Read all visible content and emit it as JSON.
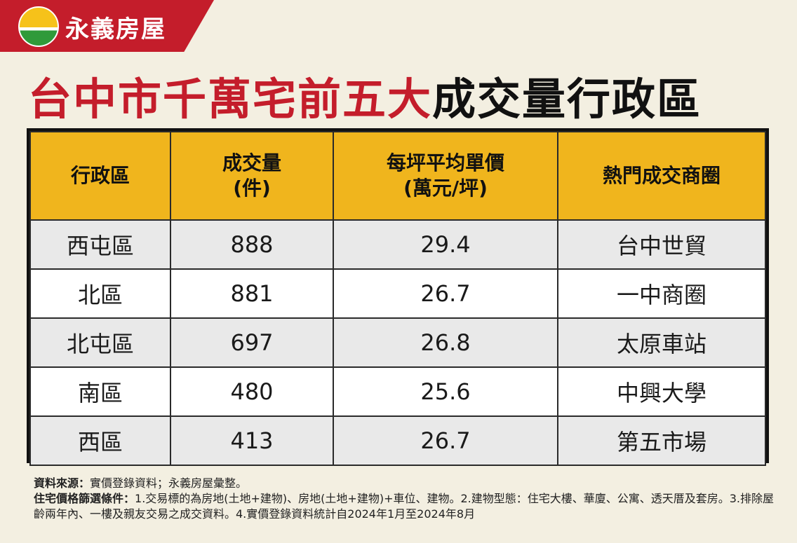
{
  "brand": {
    "name": "永義房屋"
  },
  "headline": {
    "red_part": "台中市千萬宅前五大",
    "black_part": "成交量行政區"
  },
  "table": {
    "headers": [
      {
        "line1": "行政區",
        "line2": ""
      },
      {
        "line1": "成交量",
        "line2": "(件)"
      },
      {
        "line1": "每坪平均單價",
        "line2": "(萬元/坪)"
      },
      {
        "line1": "熱門成交商圈",
        "line2": ""
      }
    ],
    "rows": [
      {
        "district": "西屯區",
        "volume": "888",
        "price": "29.4",
        "area": "台中世貿"
      },
      {
        "district": "北區",
        "volume": "881",
        "price": "26.7",
        "area": "一中商圈"
      },
      {
        "district": "北屯區",
        "volume": "697",
        "price": "26.8",
        "area": "太原車站"
      },
      {
        "district": "南區",
        "volume": "480",
        "price": "25.6",
        "area": "中興大學"
      },
      {
        "district": "西區",
        "volume": "413",
        "price": "26.7",
        "area": "第五市場"
      }
    ]
  },
  "notes": {
    "source_label": "資料來源：",
    "source_text": "實價登錄資料；永義房屋彙整。",
    "filter_label": "住宅價格篩選條件：",
    "filter_text": "1.交易標的為房地(土地+建物)、房地(土地+建物)+車位、建物。2.建物型態：住宅大樓、華廈、公寓、透天厝及套房。3.排除屋齡兩年內、一樓及親友交易之成交資料。4.實價登錄資料統計自2024年1月至2024年8月"
  },
  "colors": {
    "brand_red": "#c41d2b",
    "header_yellow": "#f0b51d",
    "row_gray": "#e9e9e9",
    "background": "#f3efe1"
  }
}
